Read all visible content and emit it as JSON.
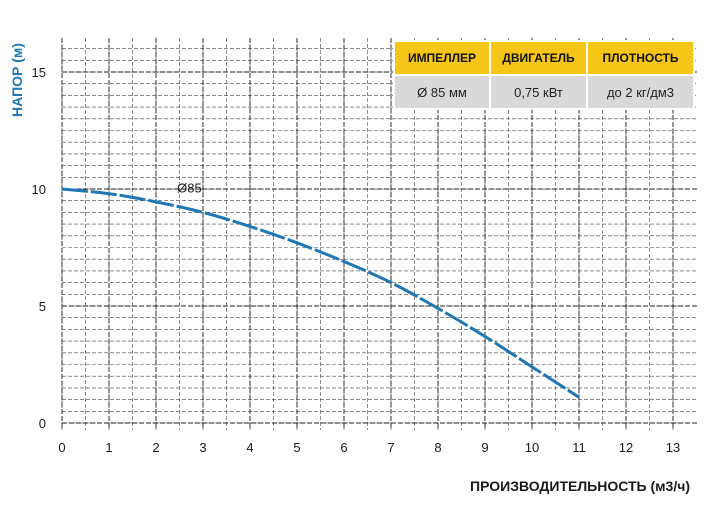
{
  "chart_data": {
    "type": "line",
    "xlabel": "ПРОИЗВОДИТЕЛЬНОСТЬ (м3/ч)",
    "ylabel": "НАПОР (м)",
    "xlim": [
      0,
      13.3
    ],
    "ylim": [
      -0.3,
      16.5
    ],
    "x_ticks": [
      0,
      1,
      2,
      3,
      4,
      5,
      6,
      7,
      8,
      9,
      10,
      11,
      12,
      13
    ],
    "y_ticks": [
      0,
      5,
      10,
      15
    ],
    "grid": true,
    "series": [
      {
        "name": "Ø85",
        "color": "#1f78b4",
        "x": [
          0,
          1,
          2,
          3,
          4,
          5,
          6,
          7,
          8,
          9,
          10,
          11
        ],
        "y": [
          10.0,
          9.8,
          9.45,
          9.0,
          8.4,
          7.7,
          6.9,
          6.0,
          4.9,
          3.7,
          2.4,
          1.1
        ]
      }
    ]
  },
  "spec_table": {
    "headers": [
      "ИМПЕЛЛЕР",
      "ДВИГАТЕЛЬ",
      "ПЛОТНОСТЬ"
    ],
    "values": [
      "Ø 85 мм",
      "0,75 кВт",
      "до 2 кг/дм3"
    ],
    "header_color": "#f5c518",
    "cell_color": "#d9d9d9"
  }
}
